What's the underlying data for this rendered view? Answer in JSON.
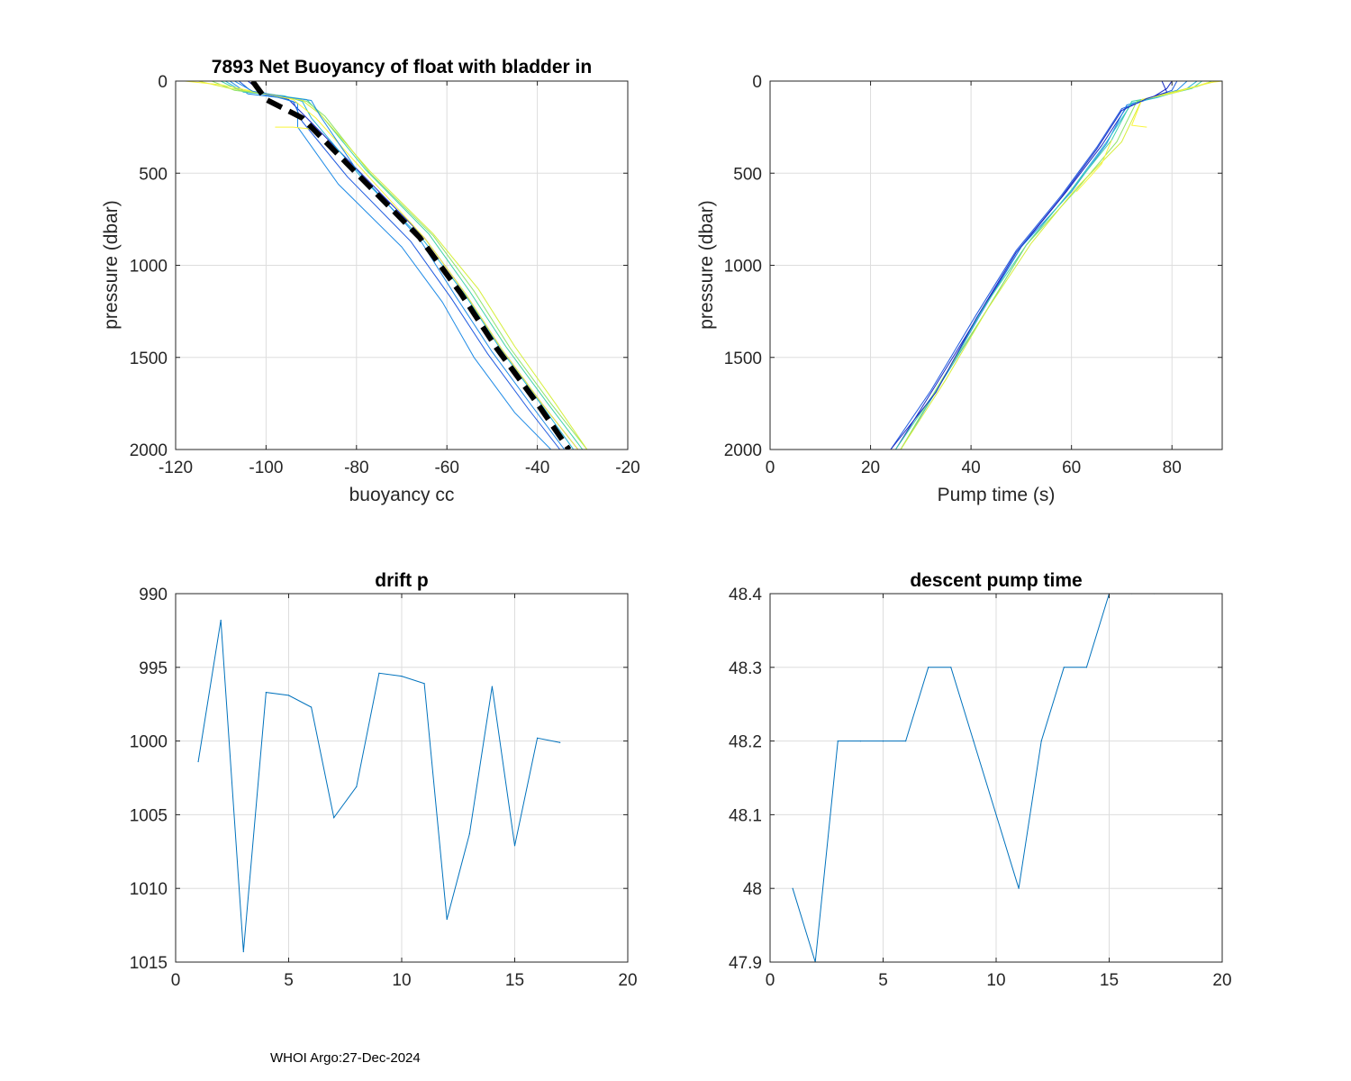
{
  "footer": "WHOI Argo:27-Dec-2024",
  "colors": {
    "axis": "#262626",
    "grid": "#dddddd",
    "line": "#0072bd",
    "mean": "#000000",
    "profile_palette": [
      "#1a2cc4",
      "#1f5ae0",
      "#1f8be6",
      "#23b4d8",
      "#3fd2a8",
      "#8ee36a",
      "#d6ee3a",
      "#f9f53a"
    ]
  },
  "chart_data": [
    {
      "id": "buoyancy",
      "type": "line",
      "title": "7893 Net Buoyancy of float with bladder in",
      "xlabel": "buoyancy cc",
      "ylabel": "pressure (dbar)",
      "xlim": [
        -120,
        -20
      ],
      "ylim": [
        0,
        2000
      ],
      "y_reversed": true,
      "grid": true,
      "xticks": [
        -120,
        -100,
        -80,
        -60,
        -40,
        -20
      ],
      "yticks": [
        0,
        500,
        1000,
        1500,
        2000
      ],
      "mean_profile": {
        "style": "dashed-thick",
        "points": [
          [
            -103,
            0
          ],
          [
            -100,
            100
          ],
          [
            -92,
            200
          ],
          [
            -80,
            500
          ],
          [
            -66,
            850
          ],
          [
            -57,
            1150
          ],
          [
            -49,
            1450
          ],
          [
            -40,
            1750
          ],
          [
            -33,
            2000
          ]
        ]
      },
      "series": [
        {
          "color_index": 0,
          "points": [
            [
              -104,
              0
            ],
            [
              -101,
              60
            ],
            [
              -98,
              80
            ],
            [
              -95,
              100
            ],
            [
              -91,
              200
            ],
            [
              -79,
              500
            ],
            [
              -65,
              850
            ],
            [
              -56,
              1150
            ],
            [
              -48,
              1450
            ],
            [
              -39,
              1750
            ],
            [
              -31,
              2000
            ]
          ]
        },
        {
          "color_index": 1,
          "points": [
            [
              -106,
              0
            ],
            [
              -103,
              60
            ],
            [
              -98,
              85
            ],
            [
              -94,
              110
            ],
            [
              -92,
              220
            ],
            [
              -82,
              520
            ],
            [
              -68,
              870
            ],
            [
              -59,
              1180
            ],
            [
              -51,
              1480
            ],
            [
              -42,
              1780
            ],
            [
              -35,
              2000
            ]
          ]
        },
        {
          "color_index": 2,
          "points": [
            [
              -108,
              0
            ],
            [
              -104,
              70
            ],
            [
              -97,
              90
            ],
            [
              -93,
              120
            ],
            [
              -93,
              250
            ],
            [
              -84,
              560
            ],
            [
              -70,
              900
            ],
            [
              -61,
              1200
            ],
            [
              -54,
              1500
            ],
            [
              -45,
              1800
            ],
            [
              -37,
              2000
            ]
          ]
        },
        {
          "color_index": 3,
          "points": [
            [
              -109,
              0
            ],
            [
              -105,
              60
            ],
            [
              -96,
              80
            ],
            [
              -92,
              110
            ],
            [
              -90,
              200
            ],
            [
              -79,
              520
            ],
            [
              -65,
              870
            ],
            [
              -56,
              1160
            ],
            [
              -48,
              1460
            ],
            [
              -39,
              1760
            ],
            [
              -32,
              2000
            ]
          ]
        },
        {
          "color_index": 4,
          "points": [
            [
              -110,
              0
            ],
            [
              -106,
              50
            ],
            [
              -97,
              80
            ],
            [
              -91,
              100
            ],
            [
              -88,
              180
            ],
            [
              -78,
              480
            ],
            [
              -64,
              830
            ],
            [
              -55,
              1140
            ],
            [
              -47,
              1440
            ],
            [
              -38,
              1740
            ],
            [
              -30,
              2000
            ]
          ]
        },
        {
          "color_index": 5,
          "points": [
            [
              -112,
              0
            ],
            [
              -107,
              50
            ],
            [
              -97,
              80
            ],
            [
              -91,
              110
            ],
            [
              -87,
              190
            ],
            [
              -77,
              500
            ],
            [
              -63,
              840
            ],
            [
              -54,
              1140
            ],
            [
              -46,
              1450
            ],
            [
              -37,
              1750
            ],
            [
              -29,
              2000
            ]
          ]
        },
        {
          "color_index": 6,
          "points": [
            [
              -115,
              0
            ],
            [
              -108,
              40
            ],
            [
              -98,
              75
            ],
            [
              -92,
              105
            ],
            [
              -88,
              180
            ],
            [
              -77,
              490
            ],
            [
              -63,
              830
            ],
            [
              -53,
              1130
            ],
            [
              -45,
              1440
            ],
            [
              -36,
              1750
            ],
            [
              -29,
              2000
            ]
          ]
        },
        {
          "color_index": 7,
          "points": [
            [
              -118,
              0
            ],
            [
              -110,
              20
            ],
            [
              -100,
              70
            ],
            [
              -94,
              100
            ],
            [
              -89,
              200
            ],
            [
              -78,
              500
            ],
            [
              -65,
              850
            ],
            [
              -56,
              1150
            ],
            [
              -48,
              1450
            ],
            [
              -39,
              1750
            ],
            [
              -31,
              2000
            ]
          ]
        },
        {
          "color_index": 7,
          "points": [
            [
              -98,
              250
            ],
            [
              -94,
              250
            ],
            [
              -90,
              260
            ]
          ]
        },
        {
          "color_index": 2,
          "points": [
            [
              -107,
              0
            ],
            [
              -103,
              55
            ],
            [
              -96,
              85
            ],
            [
              -90,
              105
            ],
            [
              -88,
              190
            ],
            [
              -80,
              480
            ],
            [
              -66,
              860
            ],
            [
              -58,
              1170
            ],
            [
              -50,
              1470
            ],
            [
              -41,
              1770
            ],
            [
              -34,
              2000
            ]
          ]
        }
      ]
    },
    {
      "id": "pump",
      "type": "line",
      "title": "",
      "xlabel": "Pump time (s)",
      "ylabel": "pressure (dbar)",
      "xlim": [
        0,
        90
      ],
      "ylim": [
        0,
        2000
      ],
      "y_reversed": true,
      "grid": true,
      "xticks": [
        0,
        20,
        40,
        60,
        80
      ],
      "yticks": [
        0,
        500,
        1000,
        1500,
        2000
      ],
      "series": [
        {
          "color_index": 0,
          "points": [
            [
              80,
              0
            ],
            [
              79,
              40
            ],
            [
              76,
              90
            ],
            [
              71,
              140
            ],
            [
              66,
              350
            ],
            [
              59,
              600
            ],
            [
              50,
              900
            ],
            [
              42,
              1250
            ],
            [
              33,
              1650
            ],
            [
              25,
              2000
            ]
          ]
        },
        {
          "color_index": 1,
          "points": [
            [
              81,
              0
            ],
            [
              80,
              50
            ],
            [
              75,
              100
            ],
            [
              70,
              150
            ],
            [
              65,
              360
            ],
            [
              58,
              620
            ],
            [
              49,
              920
            ],
            [
              41,
              1270
            ],
            [
              32,
              1680
            ],
            [
              24,
              2000
            ]
          ]
        },
        {
          "color_index": 2,
          "points": [
            [
              83,
              0
            ],
            [
              81,
              50
            ],
            [
              76,
              90
            ],
            [
              71,
              130
            ],
            [
              67,
              340
            ],
            [
              60,
              600
            ],
            [
              50,
              900
            ],
            [
              42,
              1260
            ],
            [
              34,
              1640
            ],
            [
              26,
              2000
            ]
          ]
        },
        {
          "color_index": 3,
          "points": [
            [
              85,
              0
            ],
            [
              83,
              40
            ],
            [
              77,
              90
            ],
            [
              72,
              120
            ],
            [
              67,
              330
            ],
            [
              60,
              590
            ],
            [
              51,
              890
            ],
            [
              43,
              1250
            ],
            [
              34,
              1640
            ],
            [
              26,
              2000
            ]
          ]
        },
        {
          "color_index": 4,
          "points": [
            [
              86,
              0
            ],
            [
              84,
              40
            ],
            [
              78,
              80
            ],
            [
              72,
              110
            ],
            [
              68,
              320
            ],
            [
              60,
              590
            ],
            [
              51,
              890
            ],
            [
              42,
              1250
            ],
            [
              34,
              1640
            ],
            [
              25,
              2000
            ]
          ]
        },
        {
          "color_index": 5,
          "points": [
            [
              88,
              0
            ],
            [
              85,
              30
            ],
            [
              79,
              70
            ],
            [
              73,
              110
            ],
            [
              69,
              330
            ],
            [
              61,
              590
            ],
            [
              51,
              890
            ],
            [
              43,
              1250
            ],
            [
              34,
              1630
            ],
            [
              26,
              2000
            ]
          ]
        },
        {
          "color_index": 6,
          "points": [
            [
              89,
              0
            ],
            [
              86,
              20
            ],
            [
              80,
              60
            ],
            [
              74,
              100
            ],
            [
              70,
              330
            ],
            [
              61,
              580
            ],
            [
              52,
              880
            ],
            [
              43,
              1250
            ],
            [
              35,
              1620
            ],
            [
              26,
              2000
            ]
          ]
        },
        {
          "color_index": 7,
          "points": [
            [
              90,
              0
            ],
            [
              87,
              10
            ],
            [
              81,
              60
            ],
            [
              74,
              100
            ],
            [
              72,
              240
            ],
            [
              75,
              250
            ]
          ]
        },
        {
          "color_index": 7,
          "points": [
            [
              68,
              320
            ],
            [
              66,
              450
            ],
            [
              63,
              540
            ],
            [
              61,
              600
            ]
          ]
        },
        {
          "color_index": 0,
          "points": [
            [
              78,
              0
            ],
            [
              79,
              60
            ],
            [
              75,
              95
            ],
            [
              70,
              160
            ],
            [
              65,
              370
            ],
            [
              58,
              630
            ],
            [
              49,
              930
            ],
            [
              41,
              1290
            ],
            [
              33,
              1690
            ],
            [
              24,
              2000
            ]
          ]
        }
      ]
    },
    {
      "id": "drift",
      "type": "line",
      "title": "drift p",
      "xlabel": "",
      "ylabel": "",
      "xlim": [
        0,
        20
      ],
      "ylim": [
        990,
        1015
      ],
      "y_reversed": true,
      "grid": true,
      "xticks": [
        0,
        5,
        10,
        15,
        20
      ],
      "yticks": [
        990,
        995,
        1000,
        1005,
        1010,
        1015
      ],
      "x": [
        1,
        2,
        3,
        4,
        5,
        6,
        7,
        8,
        9,
        10,
        11,
        12,
        13,
        14,
        15,
        16,
        17
      ],
      "values": [
        1001.4,
        991.8,
        1014.3,
        996.7,
        996.9,
        997.7,
        1005.2,
        1003.1,
        995.4,
        995.6,
        996.1,
        1012.1,
        1006.3,
        996.3,
        1007.1,
        999.8,
        1000.1
      ]
    },
    {
      "id": "descent",
      "type": "line",
      "title": "descent pump time",
      "xlabel": "",
      "ylabel": "",
      "xlim": [
        0,
        20
      ],
      "ylim": [
        47.9,
        48.4
      ],
      "y_reversed": false,
      "grid": true,
      "xticks": [
        0,
        5,
        10,
        15,
        20
      ],
      "yticks": [
        47.9,
        48,
        48.1,
        48.2,
        48.3,
        48.4
      ],
      "x": [
        1,
        2,
        3,
        4,
        5,
        6,
        7,
        8,
        9,
        10,
        11,
        12,
        13,
        14,
        15,
        16,
        17
      ],
      "values": [
        48.0,
        47.9,
        48.2,
        48.2,
        48.2,
        48.2,
        48.3,
        48.3,
        48.2,
        48.1,
        48.0,
        48.2,
        48.3,
        48.3,
        48.4,
        48.4,
        48.4
      ]
    }
  ]
}
